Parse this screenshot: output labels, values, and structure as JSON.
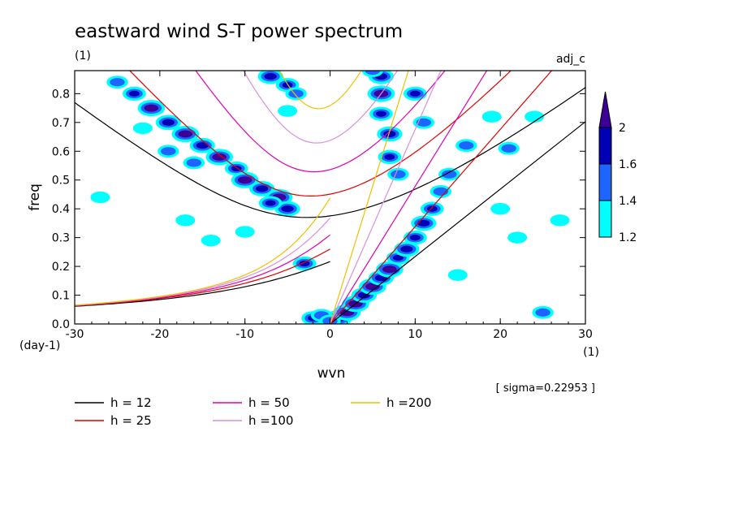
{
  "chart_data": {
    "type": "heatmap",
    "title": "eastward wind S-T power spectrum",
    "subtitle_left": "(1)",
    "subtitle_right": "adj_c",
    "xlabel": "wvn",
    "ylabel": "freq",
    "xunit": "(1)",
    "yunit": "(day-1)",
    "xlim": [
      -30,
      30
    ],
    "ylim": [
      0,
      0.88
    ],
    "xticks": [
      -30,
      -20,
      -10,
      0,
      10,
      20,
      30
    ],
    "xtick_labels": [
      "-30",
      "-20",
      "-10",
      "0",
      "10",
      "20",
      "30"
    ],
    "yticks": [
      0,
      0.1,
      0.2,
      0.3,
      0.4,
      0.5,
      0.6,
      0.7,
      0.8
    ],
    "ytick_labels": [
      "0.0",
      "0.1",
      "0.2",
      "0.3",
      "0.4",
      "0.5",
      "0.6",
      "0.7",
      "0.8"
    ],
    "sigma_text": "[ sigma=0.22953 ]",
    "colorbar": {
      "levels": [
        1.2,
        1.4,
        1.6,
        2
      ],
      "labels": [
        "1.2",
        "1.4",
        "1.6",
        "2"
      ],
      "colors": [
        "#00ffff",
        "#1e64ff",
        "#0000b4",
        "#3c0096"
      ]
    },
    "dispersion_curves": [
      {
        "label": "h = 12",
        "h": 12,
        "color": "#000000"
      },
      {
        "label": "h = 25",
        "h": 25,
        "color": "#e00000"
      },
      {
        "label": "h = 50",
        "h": 50,
        "color": "#e000b0"
      },
      {
        "label": "h =100",
        "h": 100,
        "color": "#d890e0"
      },
      {
        "label": "h =200",
        "h": 200,
        "color": "#f0c000"
      }
    ],
    "power_blobs": [
      {
        "x": -23,
        "y": 0.8,
        "v": 1.6
      },
      {
        "x": -21,
        "y": 0.75,
        "v": 2.0
      },
      {
        "x": -19,
        "y": 0.7,
        "v": 1.8
      },
      {
        "x": -17,
        "y": 0.66,
        "v": 2.0
      },
      {
        "x": -15,
        "y": 0.62,
        "v": 1.8
      },
      {
        "x": -13,
        "y": 0.58,
        "v": 2.0
      },
      {
        "x": -11,
        "y": 0.54,
        "v": 1.6
      },
      {
        "x": -10,
        "y": 0.5,
        "v": 2.0
      },
      {
        "x": -8,
        "y": 0.47,
        "v": 1.8
      },
      {
        "x": -6,
        "y": 0.44,
        "v": 2.0
      },
      {
        "x": -5,
        "y": 0.4,
        "v": 1.8
      },
      {
        "x": -7,
        "y": 0.42,
        "v": 1.6
      },
      {
        "x": -19,
        "y": 0.6,
        "v": 1.4
      },
      {
        "x": -16,
        "y": 0.56,
        "v": 1.4
      },
      {
        "x": -25,
        "y": 0.84,
        "v": 1.4
      },
      {
        "x": -22,
        "y": 0.68,
        "v": 1.2
      },
      {
        "x": -7,
        "y": 0.86,
        "v": 1.8
      },
      {
        "x": -5,
        "y": 0.83,
        "v": 1.6
      },
      {
        "x": -4,
        "y": 0.8,
        "v": 1.4
      },
      {
        "x": -5,
        "y": 0.74,
        "v": 1.2
      },
      {
        "x": 6,
        "y": 0.86,
        "v": 1.8
      },
      {
        "x": 6,
        "y": 0.8,
        "v": 2.0
      },
      {
        "x": 6,
        "y": 0.73,
        "v": 1.6
      },
      {
        "x": 7,
        "y": 0.66,
        "v": 1.8
      },
      {
        "x": 7,
        "y": 0.58,
        "v": 1.6
      },
      {
        "x": 8,
        "y": 0.52,
        "v": 1.4
      },
      {
        "x": 10,
        "y": 0.8,
        "v": 1.6
      },
      {
        "x": 11,
        "y": 0.7,
        "v": 1.4
      },
      {
        "x": 1,
        "y": 0.02,
        "v": 2.0
      },
      {
        "x": 2,
        "y": 0.04,
        "v": 2.0
      },
      {
        "x": 3,
        "y": 0.07,
        "v": 2.0
      },
      {
        "x": 4,
        "y": 0.1,
        "v": 1.8
      },
      {
        "x": 5,
        "y": 0.13,
        "v": 2.0
      },
      {
        "x": 6,
        "y": 0.16,
        "v": 1.8
      },
      {
        "x": 7,
        "y": 0.19,
        "v": 2.0
      },
      {
        "x": 8,
        "y": 0.23,
        "v": 1.6
      },
      {
        "x": 9,
        "y": 0.26,
        "v": 1.8
      },
      {
        "x": 10,
        "y": 0.3,
        "v": 1.6
      },
      {
        "x": 11,
        "y": 0.35,
        "v": 1.8
      },
      {
        "x": 12,
        "y": 0.4,
        "v": 1.6
      },
      {
        "x": 13,
        "y": 0.46,
        "v": 1.4
      },
      {
        "x": 14,
        "y": 0.52,
        "v": 1.4
      },
      {
        "x": 16,
        "y": 0.62,
        "v": 1.4
      },
      {
        "x": 19,
        "y": 0.72,
        "v": 1.2
      },
      {
        "x": -2,
        "y": 0.02,
        "v": 1.6
      },
      {
        "x": -1,
        "y": 0.03,
        "v": 1.4
      },
      {
        "x": -3,
        "y": 0.21,
        "v": 1.6
      },
      {
        "x": 0,
        "y": 0.01,
        "v": 1.4
      },
      {
        "x": 20,
        "y": 0.4,
        "v": 1.2
      },
      {
        "x": 22,
        "y": 0.3,
        "v": 1.2
      },
      {
        "x": 25,
        "y": 0.04,
        "v": 1.4
      },
      {
        "x": 21,
        "y": 0.61,
        "v": 1.4
      },
      {
        "x": 24,
        "y": 0.72,
        "v": 1.2
      },
      {
        "x": -27,
        "y": 0.44,
        "v": 1.2
      },
      {
        "x": -17,
        "y": 0.36,
        "v": 1.2
      },
      {
        "x": -10,
        "y": 0.32,
        "v": 1.2
      },
      {
        "x": -14,
        "y": 0.29,
        "v": 1.2
      },
      {
        "x": 5,
        "y": 0.88,
        "v": 1.4
      },
      {
        "x": 15,
        "y": 0.17,
        "v": 1.2
      },
      {
        "x": 27,
        "y": 0.36,
        "v": 1.2
      }
    ]
  }
}
